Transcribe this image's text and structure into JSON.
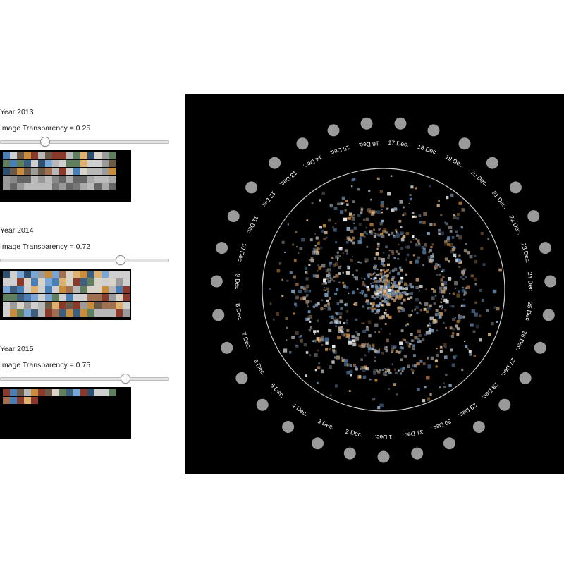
{
  "panels": [
    {
      "id": "2013",
      "year_label": "Year 2013",
      "transparency_label": "Image Transparency = 0.25",
      "transparency": 0.25,
      "rows": 5,
      "cols": 16,
      "filled": 80
    },
    {
      "id": "2014",
      "year_label": "Year 2014",
      "transparency_label": "Image Transparency = 0.72",
      "transparency": 0.72,
      "rows": 6,
      "cols": 18,
      "filled": 108
    },
    {
      "id": "2015",
      "year_label": "Year 2015",
      "transparency_label": "Image Transparency = 0.75",
      "transparency": 0.75,
      "rows": 3,
      "cols": 16,
      "filled": 21
    }
  ],
  "day_labels": [
    "1 Dec.",
    "2 Dec.",
    "3 Dec.",
    "4 Dec.",
    "5 Dec.",
    "6 Dec.",
    "7 Dec.",
    "8 Dec.",
    "9 Dec.",
    "10 Dec.",
    "11 Dec.",
    "12 Dec.",
    "13 Dec.",
    "14 Dec.",
    "15 Dec.",
    "16 Dec.",
    "17 Dec.",
    "18 Dec.",
    "19 Dec.",
    "20 Dec.",
    "21 Dec.",
    "22 Dec.",
    "23 Dec.",
    "24 Dec.",
    "25 Dec.",
    "26 Dec.",
    "27 Dec.",
    "28 Dec.",
    "29 Dec.",
    "30 Dec.",
    "31 Dec."
  ],
  "colors": {
    "background": "#000000",
    "ring": "#cfcfcf",
    "day_button": "#9a9a9a",
    "label": "#ffffff"
  }
}
